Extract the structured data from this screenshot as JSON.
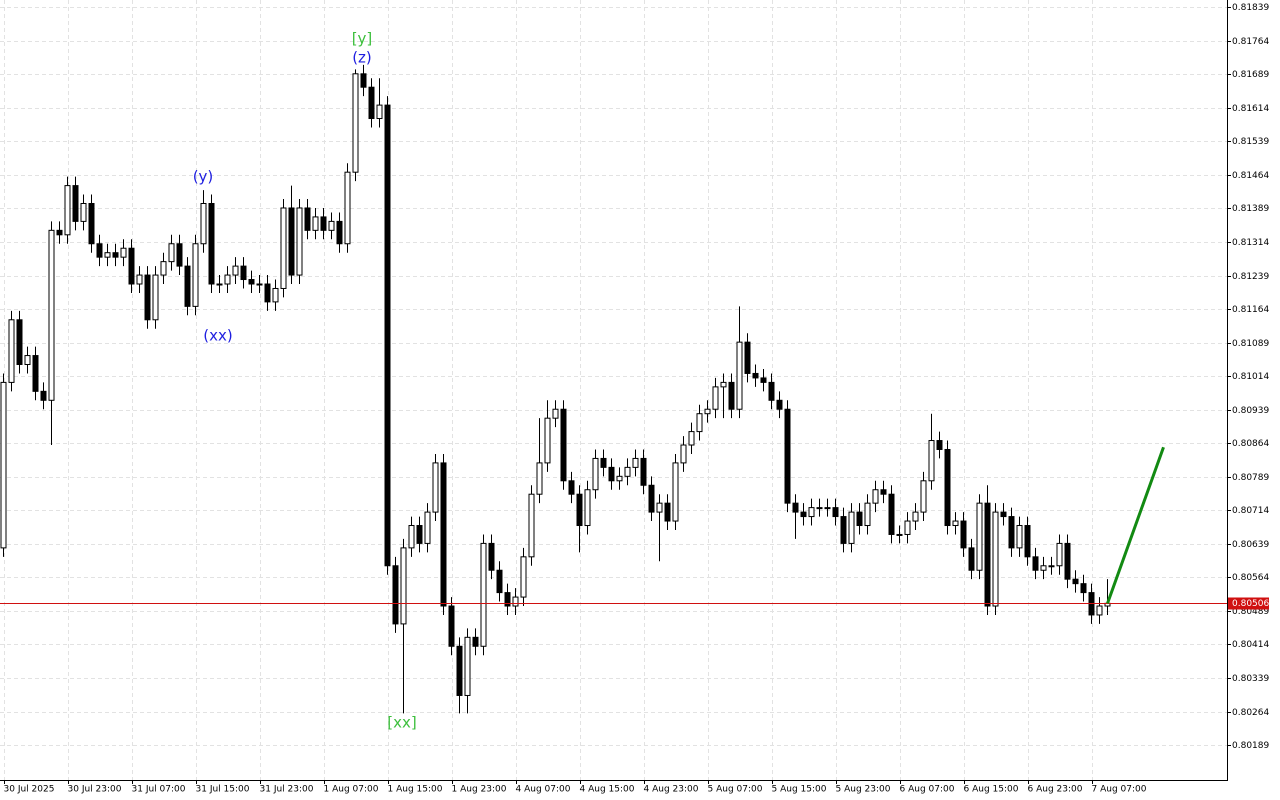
{
  "chart_data": {
    "type": "candlestick",
    "ylim": [
      0.80111,
      0.81855
    ],
    "yticks": [
      0.81839,
      0.81764,
      0.81689,
      0.81614,
      0.81539,
      0.81464,
      0.81389,
      0.81314,
      0.81239,
      0.81164,
      0.81089,
      0.81014,
      0.80939,
      0.80864,
      0.80789,
      0.80714,
      0.80639,
      0.80564,
      0.80489,
      0.80414,
      0.80339,
      0.80264,
      0.80189
    ],
    "grid": true,
    "categories": [
      "30 Jul 2025",
      null,
      null,
      null,
      null,
      null,
      null,
      null,
      "30 Jul 23:00",
      null,
      null,
      null,
      null,
      null,
      null,
      null,
      "31 Jul 07:00",
      null,
      null,
      null,
      null,
      null,
      null,
      null,
      "31 Jul 15:00",
      null,
      null,
      null,
      null,
      null,
      null,
      null,
      "31 Jul 23:00",
      null,
      null,
      null,
      null,
      null,
      null,
      null,
      "1 Aug 07:00",
      null,
      null,
      null,
      null,
      null,
      null,
      null,
      "1 Aug 15:00",
      null,
      null,
      null,
      null,
      null,
      null,
      null,
      "1 Aug 23:00",
      null,
      null,
      null,
      null,
      null,
      null,
      null,
      "4 Aug 07:00",
      null,
      null,
      null,
      null,
      null,
      null,
      null,
      "4 Aug 15:00",
      null,
      null,
      null,
      null,
      null,
      null,
      null,
      "4 Aug 23:00",
      null,
      null,
      null,
      null,
      null,
      null,
      null,
      "5 Aug 07:00",
      null,
      null,
      null,
      null,
      null,
      null,
      null,
      "5 Aug 15:00",
      null,
      null,
      null,
      null,
      null,
      null,
      null,
      "5 Aug 23:00",
      null,
      null,
      null,
      null,
      null,
      null,
      null,
      "6 Aug 07:00",
      null,
      null,
      null,
      null,
      null,
      null,
      null,
      "6 Aug 15:00",
      null,
      null,
      null,
      null,
      null,
      null,
      null,
      "6 Aug 23:00",
      null,
      null,
      null,
      null,
      null,
      null,
      null,
      "7 Aug 07:00",
      null,
      null
    ],
    "open": [
      0.8063,
      0.81,
      0.8114,
      0.8104,
      0.8106,
      0.8098,
      0.8096,
      0.8134,
      0.8133,
      0.8144,
      0.8136,
      0.814,
      0.8131,
      0.8128,
      0.8129,
      0.8128,
      0.813,
      0.8122,
      0.8124,
      0.8114,
      0.8124,
      0.8127,
      0.8131,
      0.8126,
      0.8117,
      0.8131,
      0.814,
      0.8122,
      0.8122,
      0.8124,
      0.8126,
      0.8123,
      0.8122,
      0.8122,
      0.8118,
      0.8121,
      0.8139,
      0.8124,
      0.8139,
      0.8134,
      0.8137,
      0.8134,
      0.8136,
      0.8131,
      0.8147,
      0.8169,
      0.8166,
      0.8159,
      0.8162,
      0.8059,
      0.8046,
      0.8063,
      0.8068,
      0.8064,
      0.8071,
      0.8082,
      0.805,
      0.8041,
      0.803,
      0.8043,
      0.8041,
      0.8064,
      0.8058,
      0.8053,
      0.805,
      0.8052,
      0.8061,
      0.8075,
      0.8082,
      0.8092,
      0.8094,
      0.8078,
      0.8075,
      0.8068,
      0.8076,
      0.8083,
      0.8081,
      0.8078,
      0.8079,
      0.8081,
      0.8083,
      0.8077,
      0.8071,
      0.8073,
      0.8069,
      0.8082,
      0.8086,
      0.8089,
      0.8093,
      0.8094,
      0.8099,
      0.81,
      0.8094,
      0.8109,
      0.8102,
      0.8101,
      0.81,
      0.8096,
      0.8094,
      0.8073,
      0.8071,
      0.807,
      0.8072,
      0.8072,
      0.8072,
      0.807,
      0.8064,
      0.8071,
      0.8068,
      0.8073,
      0.8076,
      0.8075,
      0.8066,
      0.8066,
      0.8069,
      0.8071,
      0.8078,
      0.8087,
      0.8085,
      0.8068,
      0.8069,
      0.8063,
      0.8058,
      0.8073,
      0.805,
      0.8071,
      0.807,
      0.8063,
      0.8068,
      0.8061,
      0.8058,
      0.8059,
      0.8059,
      0.8064,
      0.8056,
      0.8055,
      0.8053,
      0.8048,
      0.805
    ],
    "high": [
      0.8102,
      0.8116,
      0.8116,
      0.8108,
      0.8108,
      0.81,
      0.8136,
      0.8136,
      0.8146,
      0.8146,
      0.8142,
      0.8142,
      0.8133,
      0.8131,
      0.8131,
      0.8132,
      0.8132,
      0.8126,
      0.8126,
      0.8126,
      0.8129,
      0.8133,
      0.8133,
      0.8128,
      0.8133,
      0.8143,
      0.8142,
      0.8124,
      0.8126,
      0.8128,
      0.8128,
      0.8125,
      0.8124,
      0.8124,
      0.8123,
      0.8141,
      0.8144,
      0.8141,
      0.8141,
      0.8139,
      0.8139,
      0.8138,
      0.8138,
      0.8149,
      0.817,
      0.8171,
      0.8168,
      0.8168,
      0.8164,
      0.8061,
      0.8065,
      0.807,
      0.807,
      0.8073,
      0.8084,
      0.8084,
      0.8052,
      0.8043,
      0.8045,
      0.8045,
      0.8066,
      0.8066,
      0.806,
      0.8055,
      0.8054,
      0.8063,
      0.8077,
      0.8092,
      0.8096,
      0.8096,
      0.8096,
      0.808,
      0.8077,
      0.8078,
      0.8085,
      0.8085,
      0.8083,
      0.8081,
      0.8083,
      0.8085,
      0.8085,
      0.8079,
      0.8075,
      0.8075,
      0.8084,
      0.8088,
      0.8091,
      0.8095,
      0.8096,
      0.8101,
      0.8102,
      0.8102,
      0.8117,
      0.8111,
      0.8104,
      0.8103,
      0.8102,
      0.8098,
      0.8096,
      0.8075,
      0.8073,
      0.8074,
      0.8074,
      0.8074,
      0.8074,
      0.8072,
      0.8073,
      0.8073,
      0.8075,
      0.8078,
      0.8078,
      0.8077,
      0.8068,
      0.8071,
      0.8073,
      0.808,
      0.8093,
      0.8089,
      0.8087,
      0.8071,
      0.8071,
      0.8065,
      0.8075,
      0.8077,
      0.8073,
      0.8073,
      0.8072,
      0.807,
      0.807,
      0.8063,
      0.8061,
      0.8061,
      0.8066,
      0.8066,
      0.8058,
      0.8057,
      0.8055,
      0.8052,
      0.8056
    ],
    "low": [
      0.8061,
      0.8098,
      0.8102,
      0.8102,
      0.8096,
      0.8094,
      0.8086,
      0.8131,
      0.8131,
      0.8134,
      0.8134,
      0.8129,
      0.8126,
      0.8126,
      0.8126,
      0.8126,
      0.812,
      0.812,
      0.8112,
      0.8112,
      0.8122,
      0.8125,
      0.8124,
      0.8115,
      0.8115,
      0.8129,
      0.812,
      0.812,
      0.812,
      0.8122,
      0.8121,
      0.812,
      0.812,
      0.8116,
      0.8116,
      0.8119,
      0.8122,
      0.8122,
      0.8132,
      0.8132,
      0.8132,
      0.8132,
      0.8129,
      0.8129,
      0.8145,
      0.8164,
      0.8157,
      0.8157,
      0.8057,
      0.8044,
      0.8026,
      0.8061,
      0.8062,
      0.8062,
      0.8069,
      0.8048,
      0.8039,
      0.8026,
      0.8026,
      0.8039,
      0.8039,
      0.8056,
      0.8051,
      0.8048,
      0.8048,
      0.805,
      0.8059,
      0.8073,
      0.808,
      0.809,
      0.8076,
      0.8073,
      0.8062,
      0.8066,
      0.8074,
      0.8079,
      0.8076,
      0.8076,
      0.8077,
      0.8079,
      0.8075,
      0.8069,
      0.806,
      0.8067,
      0.8067,
      0.808,
      0.8084,
      0.8087,
      0.8091,
      0.8092,
      0.8092,
      0.8092,
      0.8092,
      0.81,
      0.8099,
      0.8098,
      0.8094,
      0.8092,
      0.8071,
      0.8065,
      0.8068,
      0.8068,
      0.807,
      0.807,
      0.8068,
      0.8062,
      0.8062,
      0.8066,
      0.8066,
      0.8071,
      0.8073,
      0.8064,
      0.8064,
      0.8064,
      0.8067,
      0.8069,
      0.8076,
      0.8083,
      0.8066,
      0.8066,
      0.8061,
      0.8056,
      0.8056,
      0.8048,
      0.8048,
      0.8068,
      0.8061,
      0.8061,
      0.8059,
      0.8056,
      0.8056,
      0.8057,
      0.8057,
      0.8054,
      0.8053,
      0.8051,
      0.8046,
      0.8046,
      0.8048
    ],
    "close": [
      0.81,
      0.8114,
      0.8104,
      0.8106,
      0.8098,
      0.8096,
      0.8134,
      0.8133,
      0.8144,
      0.8136,
      0.814,
      0.8131,
      0.8128,
      0.8129,
      0.8128,
      0.813,
      0.8122,
      0.8124,
      0.8114,
      0.8124,
      0.8127,
      0.8131,
      0.8126,
      0.8117,
      0.8131,
      0.814,
      0.8122,
      0.8122,
      0.8124,
      0.8126,
      0.8123,
      0.8122,
      0.8122,
      0.8118,
      0.8121,
      0.8139,
      0.8124,
      0.8139,
      0.8134,
      0.8137,
      0.8134,
      0.8136,
      0.8131,
      0.8147,
      0.8169,
      0.8166,
      0.8159,
      0.8162,
      0.8059,
      0.8046,
      0.8063,
      0.8068,
      0.8064,
      0.8071,
      0.8082,
      0.805,
      0.8041,
      0.803,
      0.8043,
      0.8041,
      0.8064,
      0.8058,
      0.8053,
      0.805,
      0.8052,
      0.8061,
      0.8075,
      0.8082,
      0.8092,
      0.8094,
      0.8078,
      0.8075,
      0.8068,
      0.8076,
      0.8083,
      0.8081,
      0.8078,
      0.8079,
      0.8081,
      0.8083,
      0.8077,
      0.8071,
      0.8073,
      0.8069,
      0.8082,
      0.8086,
      0.8089,
      0.8093,
      0.8094,
      0.8099,
      0.81,
      0.8094,
      0.8109,
      0.8102,
      0.8101,
      0.81,
      0.8096,
      0.8094,
      0.8073,
      0.8071,
      0.807,
      0.8072,
      0.8072,
      0.8072,
      0.807,
      0.8064,
      0.8071,
      0.8068,
      0.8073,
      0.8076,
      0.8075,
      0.8066,
      0.8066,
      0.8069,
      0.8071,
      0.8078,
      0.8087,
      0.8085,
      0.8068,
      0.8069,
      0.8063,
      0.8058,
      0.8073,
      0.805,
      0.8071,
      0.807,
      0.8063,
      0.8068,
      0.8061,
      0.8058,
      0.8059,
      0.8059,
      0.8064,
      0.8056,
      0.8055,
      0.8053,
      0.8048,
      0.805,
      0.80506
    ],
    "price_line": {
      "value": 0.80506,
      "color": "#d01010"
    },
    "forecast": {
      "values": [
        0.80506,
        0.80855
      ],
      "color": "#128a12"
    },
    "annotations": [
      {
        "text": "[y]",
        "color": "#3cbf3c"
      },
      {
        "text": "(z)",
        "color": "#1f1fe0"
      },
      {
        "text": "(y)",
        "color": "#1f1fe0"
      },
      {
        "text": "(xx)",
        "color": "#1f1fe0"
      },
      {
        "text": "[xx]",
        "color": "#3cbf3c"
      }
    ]
  }
}
